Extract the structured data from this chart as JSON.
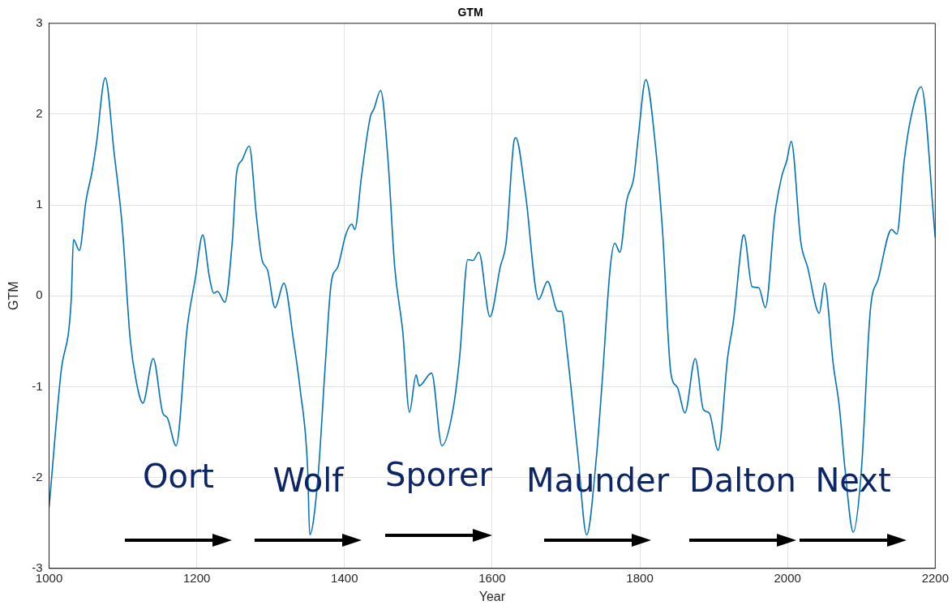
{
  "chart_data": {
    "type": "line",
    "title": "GTM",
    "xlabel": "Year",
    "ylabel": "GTM",
    "xlim": [
      1000,
      2200
    ],
    "xticks": [
      1000,
      1200,
      1400,
      1600,
      1800,
      2000,
      2200
    ],
    "ylim": [
      -3,
      3
    ],
    "yticks": [
      -3,
      -2,
      -1,
      0,
      1,
      2,
      3
    ],
    "grid": true,
    "marker": "none",
    "line_style": "solid",
    "x": [
      1000,
      1016,
      1030,
      1033,
      1041,
      1050,
      1058,
      1064,
      1076,
      1088,
      1099,
      1110,
      1118,
      1127,
      1141,
      1154,
      1160,
      1172,
      1187,
      1198,
      1208,
      1217,
      1223,
      1228,
      1238,
      1248,
      1254,
      1261,
      1271,
      1281,
      1288,
      1296,
      1306,
      1318,
      1331,
      1340,
      1350,
      1353,
      1364,
      1374,
      1382,
      1391,
      1402,
      1410,
      1414,
      1423,
      1435,
      1440,
      1449,
      1459,
      1468,
      1479,
      1488,
      1497,
      1501,
      1518,
      1532,
      1547,
      1556,
      1567,
      1574,
      1582,
      1597,
      1611,
      1619,
      1630,
      1632,
      1645,
      1663,
      1675,
      1689,
      1694,
      1701,
      1716,
      1728,
      1741,
      1749,
      1760,
      1766,
      1773,
      1782,
      1792,
      1798,
      1808,
      1822,
      1831,
      1842,
      1851,
      1861,
      1875,
      1886,
      1894,
      1906,
      1919,
      1927,
      1939,
      1941,
      1952,
      1961,
      1970,
      1983,
      1992,
      1999,
      2005,
      2018,
      2027,
      2043,
      2050,
      2062,
      2070,
      2078,
      2089,
      2100,
      2112,
      2123,
      2141,
      2148,
      2158,
      2167,
      2181,
      2200
    ],
    "values": [
      -2.33,
      -0.85,
      -0.04,
      0.62,
      0.5,
      1.05,
      1.36,
      1.67,
      2.4,
      1.58,
      0.77,
      -0.49,
      -0.94,
      -1.18,
      -0.69,
      -1.29,
      -1.34,
      -1.65,
      -0.35,
      0.19,
      0.67,
      0.21,
      0.03,
      0.05,
      -0.07,
      0.59,
      1.36,
      1.49,
      1.65,
      0.86,
      0.41,
      0.28,
      -0.13,
      0.14,
      -0.49,
      -1.03,
      -1.88,
      -2.63,
      -2.01,
      -0.76,
      0.14,
      0.32,
      0.68,
      0.79,
      0.73,
      1.31,
      1.97,
      2.06,
      2.26,
      1.49,
      0.32,
      -0.4,
      -1.28,
      -0.87,
      -0.99,
      -0.85,
      -1.65,
      -1.25,
      -0.67,
      0.4,
      0.39,
      0.48,
      -0.23,
      0.32,
      0.59,
      1.72,
      1.74,
      1.13,
      -0.04,
      0.16,
      -0.17,
      -0.17,
      -0.58,
      -1.74,
      -2.63,
      -1.79,
      -0.94,
      0.32,
      0.58,
      0.48,
      1.04,
      1.31,
      1.76,
      2.38,
      1.58,
      0.68,
      -0.85,
      -1.01,
      -1.29,
      -0.69,
      -1.25,
      -1.29,
      -1.7,
      -0.67,
      -0.26,
      0.64,
      0.67,
      0.1,
      0.09,
      -0.13,
      0.91,
      1.31,
      1.49,
      1.7,
      0.59,
      0.32,
      -0.19,
      0.14,
      -0.76,
      -1.21,
      -1.92,
      -2.6,
      -1.92,
      -0.17,
      0.19,
      0.73,
      0.68,
      1.49,
      1.96,
      2.3,
      0.64
    ],
    "color": "#0072bd",
    "annotations": [
      "Oort",
      "Wolf",
      "Sporer",
      "Maunder",
      "Dalton",
      "Next"
    ]
  }
}
